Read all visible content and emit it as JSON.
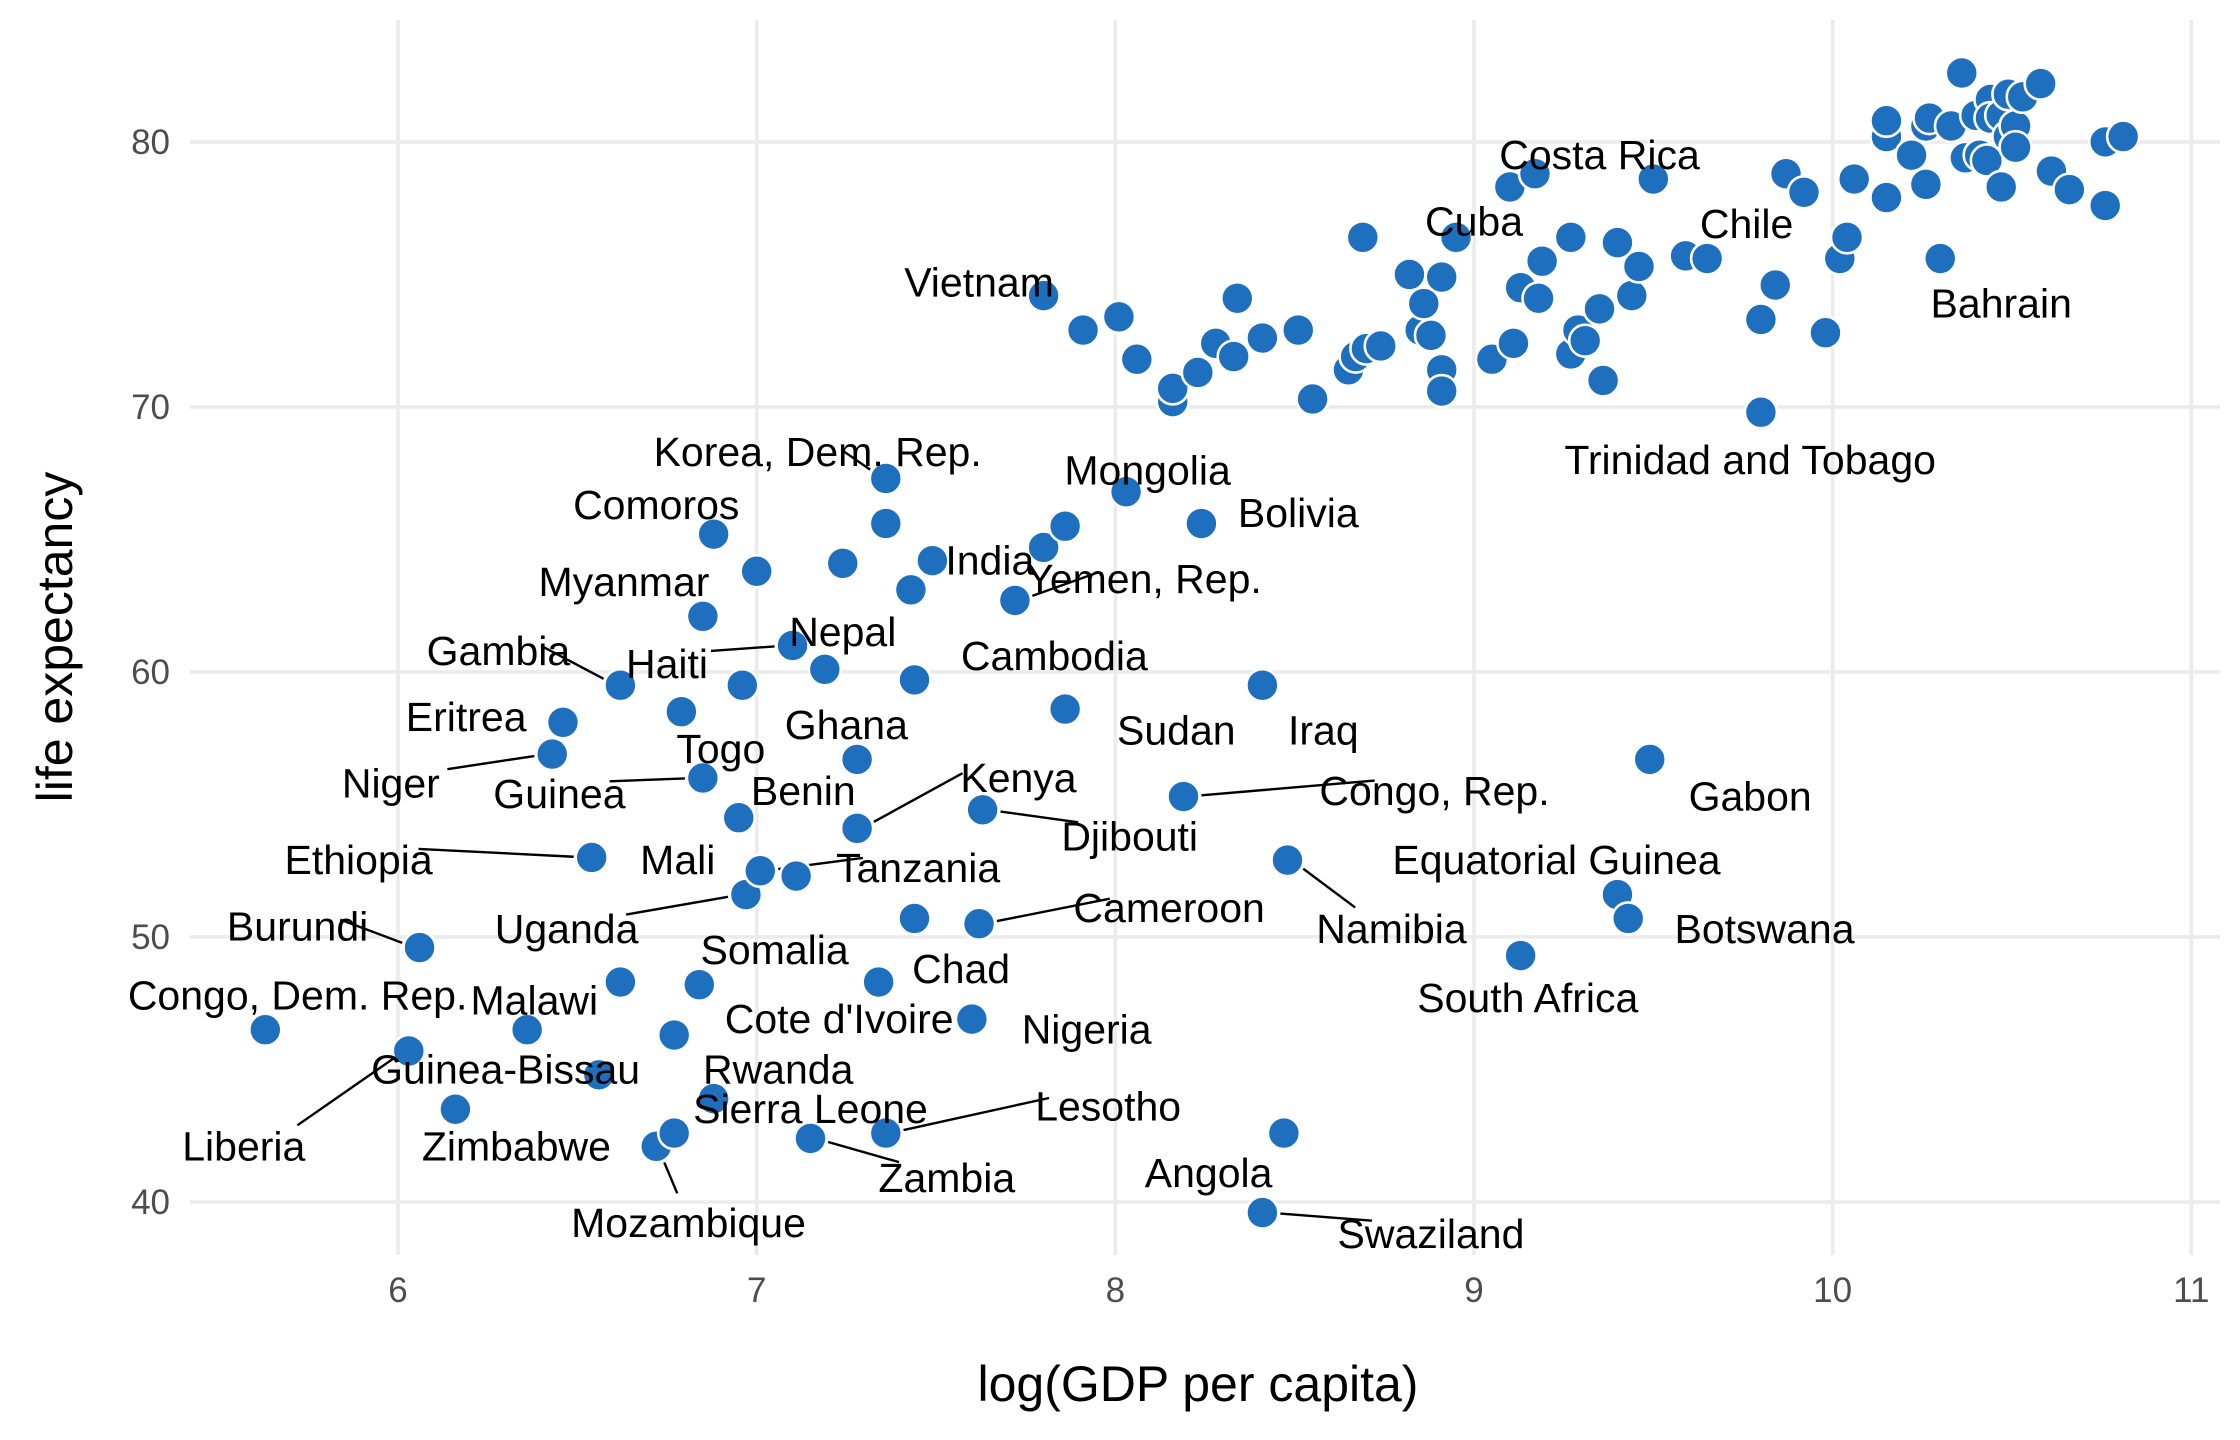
{
  "chart_data": {
    "type": "scatter",
    "xlabel": "log(GDP per capita)",
    "ylabel": "life expectancy",
    "xlim": [
      5.42,
      11.08
    ],
    "ylim": [
      38.0,
      84.6
    ],
    "x_ticks": [
      6,
      7,
      8,
      9,
      10,
      11
    ],
    "y_ticks": [
      40,
      50,
      60,
      70,
      80
    ],
    "grid": true,
    "point_color": "#1f6fbf",
    "points": [
      [
        5.63,
        46.5
      ],
      [
        6.03,
        45.7
      ],
      [
        6.06,
        49.6
      ],
      [
        6.16,
        43.5
      ],
      [
        6.36,
        46.5
      ],
      [
        6.43,
        56.9
      ],
      [
        6.46,
        58.1
      ],
      [
        6.54,
        53.0
      ],
      [
        6.56,
        44.8
      ],
      [
        6.62,
        48.3
      ],
      [
        6.62,
        59.5
      ],
      [
        6.72,
        42.1
      ],
      [
        6.77,
        42.6
      ],
      [
        6.77,
        46.3
      ],
      [
        6.79,
        58.5
      ],
      [
        6.84,
        48.2
      ],
      [
        6.85,
        56.0
      ],
      [
        6.85,
        62.1
      ],
      [
        6.88,
        65.2
      ],
      [
        6.88,
        43.9
      ],
      [
        6.95,
        54.5
      ],
      [
        6.96,
        59.5
      ],
      [
        6.97,
        51.6
      ],
      [
        7.0,
        63.8
      ],
      [
        7.01,
        52.5
      ],
      [
        7.1,
        61.0
      ],
      [
        7.11,
        52.3
      ],
      [
        7.15,
        42.4
      ],
      [
        7.19,
        60.1
      ],
      [
        7.24,
        64.1
      ],
      [
        7.28,
        56.7
      ],
      [
        7.28,
        54.1
      ],
      [
        7.34,
        48.3
      ],
      [
        7.36,
        67.3
      ],
      [
        7.36,
        65.6
      ],
      [
        7.36,
        42.6
      ],
      [
        7.43,
        63.1
      ],
      [
        7.44,
        59.7
      ],
      [
        7.44,
        50.7
      ],
      [
        7.49,
        64.2
      ],
      [
        7.6,
        46.9
      ],
      [
        7.62,
        50.5
      ],
      [
        7.63,
        54.8
      ],
      [
        7.72,
        62.7
      ],
      [
        7.8,
        74.2
      ],
      [
        7.8,
        64.7
      ],
      [
        7.86,
        65.5
      ],
      [
        7.86,
        58.6
      ],
      [
        7.91,
        72.9
      ],
      [
        8.01,
        73.4
      ],
      [
        8.03,
        66.8
      ],
      [
        8.06,
        71.8
      ],
      [
        8.16,
        70.2
      ],
      [
        8.16,
        70.7
      ],
      [
        8.19,
        55.3
      ],
      [
        8.23,
        71.3
      ],
      [
        8.24,
        65.6
      ],
      [
        8.28,
        72.4
      ],
      [
        8.33,
        71.9
      ],
      [
        8.34,
        74.1
      ],
      [
        8.41,
        72.6
      ],
      [
        8.41,
        59.5
      ],
      [
        8.41,
        39.6
      ],
      [
        8.47,
        42.6
      ],
      [
        8.48,
        52.9
      ],
      [
        8.51,
        72.9
      ],
      [
        8.55,
        70.3
      ],
      [
        8.65,
        71.4
      ],
      [
        8.67,
        71.9
      ],
      [
        8.69,
        76.4
      ],
      [
        8.7,
        72.2
      ],
      [
        8.74,
        72.3
      ],
      [
        8.82,
        75.0
      ],
      [
        8.85,
        72.9
      ],
      [
        8.86,
        73.9
      ],
      [
        8.88,
        72.7
      ],
      [
        8.91,
        71.4
      ],
      [
        8.91,
        70.6
      ],
      [
        8.91,
        74.9
      ],
      [
        8.95,
        76.4
      ],
      [
        9.05,
        71.8
      ],
      [
        9.1,
        78.3
      ],
      [
        9.11,
        72.4
      ],
      [
        9.13,
        74.5
      ],
      [
        9.13,
        49.3
      ],
      [
        9.17,
        78.8
      ],
      [
        9.18,
        74.1
      ],
      [
        9.19,
        75.5
      ],
      [
        9.27,
        72.0
      ],
      [
        9.27,
        76.4
      ],
      [
        9.29,
        72.9
      ],
      [
        9.31,
        72.5
      ],
      [
        9.35,
        73.7
      ],
      [
        9.36,
        71.0
      ],
      [
        9.4,
        76.2
      ],
      [
        9.4,
        51.6
      ],
      [
        9.43,
        50.7
      ],
      [
        9.44,
        74.2
      ],
      [
        9.46,
        75.3
      ],
      [
        9.49,
        56.7
      ],
      [
        9.5,
        78.6
      ],
      [
        9.59,
        75.7
      ],
      [
        9.65,
        75.6
      ],
      [
        9.8,
        73.3
      ],
      [
        9.8,
        69.8
      ],
      [
        9.84,
        74.6
      ],
      [
        9.87,
        78.8
      ],
      [
        9.92,
        78.1
      ],
      [
        9.98,
        72.8
      ],
      [
        10.02,
        75.6
      ],
      [
        10.04,
        76.4
      ],
      [
        10.06,
        78.6
      ],
      [
        10.15,
        80.2
      ],
      [
        10.15,
        80.8
      ],
      [
        10.15,
        77.9
      ],
      [
        10.22,
        79.5
      ],
      [
        10.26,
        80.6
      ],
      [
        10.26,
        78.4
      ],
      [
        10.27,
        80.9
      ],
      [
        10.3,
        75.6
      ],
      [
        10.33,
        80.6
      ],
      [
        10.36,
        82.6
      ],
      [
        10.37,
        79.4
      ],
      [
        10.4,
        81.0
      ],
      [
        10.41,
        79.5
      ],
      [
        10.43,
        79.3
      ],
      [
        10.44,
        81.6
      ],
      [
        10.44,
        80.9
      ],
      [
        10.47,
        81.0
      ],
      [
        10.47,
        78.3
      ],
      [
        10.49,
        80.2
      ],
      [
        10.49,
        81.8
      ],
      [
        10.51,
        80.6
      ],
      [
        10.51,
        79.8
      ],
      [
        10.53,
        81.7
      ],
      [
        10.58,
        82.2
      ],
      [
        10.61,
        78.9
      ],
      [
        10.66,
        78.2
      ],
      [
        10.76,
        80.0
      ],
      [
        10.76,
        77.6
      ],
      [
        10.81,
        80.2
      ]
    ],
    "labels": [
      {
        "text": "Costa Rica",
        "x": 9.17,
        "y": 78.8,
        "ax": 9.35,
        "ay": 79.5,
        "anchor": "middle",
        "leader": false
      },
      {
        "text": "Cuba",
        "x": 8.95,
        "y": 76.4,
        "ax": 9.0,
        "ay": 77.0,
        "anchor": "middle",
        "leader": false
      },
      {
        "text": "Chile",
        "x": 9.59,
        "y": 75.7,
        "ax": 9.76,
        "ay": 76.9,
        "anchor": "middle",
        "leader": false
      },
      {
        "text": "Vietnam",
        "x": 7.8,
        "y": 74.2,
        "ax": 7.62,
        "ay": 74.7,
        "anchor": "middle",
        "leader": false
      },
      {
        "text": "Bahrain",
        "x": 10.3,
        "y": 75.6,
        "ax": 10.47,
        "ay": 73.9,
        "anchor": "middle",
        "leader": false
      },
      {
        "text": "Trinidad and Tobago",
        "x": 9.8,
        "y": 69.8,
        "ax": 9.77,
        "ay": 68.0,
        "anchor": "middle",
        "leader": false
      },
      {
        "text": "Korea, Dem. Rep.",
        "x": 7.36,
        "y": 67.3,
        "ax": 7.17,
        "ay": 68.3,
        "anchor": "middle",
        "leader": true
      },
      {
        "text": "Mongolia",
        "x": 8.03,
        "y": 66.8,
        "ax": 8.09,
        "ay": 67.6,
        "anchor": "middle",
        "leader": false
      },
      {
        "text": "Bolivia",
        "x": 8.24,
        "y": 65.6,
        "ax": 8.51,
        "ay": 66.0,
        "anchor": "middle",
        "leader": false
      },
      {
        "text": "Comoros",
        "x": 6.88,
        "y": 65.2,
        "ax": 6.72,
        "ay": 66.3,
        "anchor": "middle",
        "leader": false
      },
      {
        "text": "India",
        "x": 7.49,
        "y": 64.2,
        "ax": 7.65,
        "ay": 64.2,
        "anchor": "middle",
        "leader": false
      },
      {
        "text": "Myanmar",
        "x": 7.0,
        "y": 63.8,
        "ax": 6.63,
        "ay": 63.4,
        "anchor": "middle",
        "leader": false
      },
      {
        "text": "Yemen, Rep.",
        "x": 7.72,
        "y": 62.7,
        "ax": 8.08,
        "ay": 63.5,
        "anchor": "middle",
        "leader": true
      },
      {
        "text": "Nepal",
        "x": 7.1,
        "y": 61.0,
        "ax": 7.24,
        "ay": 61.5,
        "anchor": "middle",
        "leader": false
      },
      {
        "text": "Gambia",
        "x": 6.62,
        "y": 59.5,
        "ax": 6.28,
        "ay": 60.8,
        "anchor": "middle",
        "leader": true
      },
      {
        "text": "Haiti",
        "x": 7.1,
        "y": 61.0,
        "ax": 6.75,
        "ay": 60.3,
        "anchor": "middle",
        "leader": true
      },
      {
        "text": "Cambodia",
        "x": 7.44,
        "y": 59.7,
        "ax": 7.83,
        "ay": 60.6,
        "anchor": "middle",
        "leader": false
      },
      {
        "text": "Eritrea",
        "x": 6.46,
        "y": 58.1,
        "ax": 6.19,
        "ay": 58.3,
        "anchor": "middle",
        "leader": false
      },
      {
        "text": "Ghana",
        "x": 7.28,
        "y": 56.7,
        "ax": 7.25,
        "ay": 58.0,
        "anchor": "middle",
        "leader": false
      },
      {
        "text": "Sudan",
        "x": 7.86,
        "y": 58.6,
        "ax": 8.17,
        "ay": 57.8,
        "anchor": "middle",
        "leader": false
      },
      {
        "text": "Iraq",
        "x": 8.41,
        "y": 59.5,
        "ax": 8.58,
        "ay": 57.8,
        "anchor": "middle",
        "leader": false
      },
      {
        "text": "Togo",
        "x": 6.85,
        "y": 56.0,
        "ax": 6.9,
        "ay": 57.1,
        "anchor": "middle",
        "leader": false
      },
      {
        "text": "Niger",
        "x": 6.43,
        "y": 56.9,
        "ax": 5.98,
        "ay": 55.8,
        "anchor": "middle",
        "leader": true
      },
      {
        "text": "Guinea",
        "x": 6.85,
        "y": 56.0,
        "ax": 6.45,
        "ay": 55.4,
        "anchor": "middle",
        "leader": true
      },
      {
        "text": "Benin",
        "x": 6.95,
        "y": 54.5,
        "ax": 7.13,
        "ay": 55.5,
        "anchor": "middle",
        "leader": false
      },
      {
        "text": "Kenya",
        "x": 7.28,
        "y": 54.1,
        "ax": 7.73,
        "ay": 56.0,
        "anchor": "middle",
        "leader": true
      },
      {
        "text": "Congo, Rep.",
        "x": 8.19,
        "y": 55.3,
        "ax": 8.89,
        "ay": 55.5,
        "anchor": "middle",
        "leader": true
      },
      {
        "text": "Gabon",
        "x": 9.49,
        "y": 56.7,
        "ax": 9.77,
        "ay": 55.3,
        "anchor": "middle",
        "leader": false
      },
      {
        "text": "Djibouti",
        "x": 7.63,
        "y": 54.8,
        "ax": 8.04,
        "ay": 53.8,
        "anchor": "middle",
        "leader": true
      },
      {
        "text": "Ethiopia",
        "x": 6.54,
        "y": 53.0,
        "ax": 5.89,
        "ay": 52.9,
        "anchor": "middle",
        "leader": true
      },
      {
        "text": "Mali",
        "x": 7.01,
        "y": 52.5,
        "ax": 6.78,
        "ay": 52.9,
        "anchor": "middle",
        "leader": false
      },
      {
        "text": "Tanzania",
        "x": 7.01,
        "y": 52.5,
        "ax": 7.45,
        "ay": 52.6,
        "anchor": "middle",
        "leader": true
      },
      {
        "text": "Equatorial Guinea",
        "x": 9.4,
        "y": 51.6,
        "ax": 9.23,
        "ay": 52.9,
        "anchor": "middle",
        "leader": false
      },
      {
        "text": "Cameroon",
        "x": 7.62,
        "y": 50.5,
        "ax": 8.15,
        "ay": 51.1,
        "anchor": "middle",
        "leader": true
      },
      {
        "text": "Uganda",
        "x": 6.97,
        "y": 51.6,
        "ax": 6.47,
        "ay": 50.3,
        "anchor": "middle",
        "leader": true
      },
      {
        "text": "Namibia",
        "x": 8.48,
        "y": 52.9,
        "ax": 8.77,
        "ay": 50.3,
        "anchor": "middle",
        "leader": true
      },
      {
        "text": "Botswana",
        "x": 9.43,
        "y": 50.7,
        "ax": 9.81,
        "ay": 50.3,
        "anchor": "middle",
        "leader": false
      },
      {
        "text": "Burundi",
        "x": 6.06,
        "y": 49.6,
        "ax": 5.72,
        "ay": 50.4,
        "anchor": "middle",
        "leader": true
      },
      {
        "text": "Somalia",
        "x": 6.84,
        "y": 48.2,
        "ax": 7.05,
        "ay": 49.5,
        "anchor": "middle",
        "leader": false
      },
      {
        "text": "Chad",
        "x": 7.34,
        "y": 48.3,
        "ax": 7.57,
        "ay": 48.8,
        "anchor": "middle",
        "leader": false
      },
      {
        "text": "South Africa",
        "x": 9.13,
        "y": 49.3,
        "ax": 9.15,
        "ay": 47.7,
        "anchor": "middle",
        "leader": false
      },
      {
        "text": "Congo, Dem. Rep.",
        "x": 5.63,
        "y": 46.5,
        "ax": 5.72,
        "ay": 47.8,
        "anchor": "middle",
        "leader": false
      },
      {
        "text": "Malawi",
        "x": 6.36,
        "y": 46.5,
        "ax": 6.38,
        "ay": 47.6,
        "anchor": "middle",
        "leader": false
      },
      {
        "text": "Cote d'Ivoire",
        "x": 6.77,
        "y": 46.3,
        "ax": 7.23,
        "ay": 46.9,
        "anchor": "middle",
        "leader": false
      },
      {
        "text": "Nigeria",
        "x": 7.6,
        "y": 46.9,
        "ax": 7.92,
        "ay": 46.5,
        "anchor": "middle",
        "leader": false
      },
      {
        "text": "Guinea-Bissau",
        "x": 6.56,
        "y": 44.8,
        "ax": 6.3,
        "ay": 45.0,
        "anchor": "middle",
        "leader": false
      },
      {
        "text": "Rwanda",
        "x": 6.88,
        "y": 43.9,
        "ax": 7.06,
        "ay": 45.0,
        "anchor": "middle",
        "leader": false
      },
      {
        "text": "Sierra Leone",
        "x": 6.88,
        "y": 43.9,
        "ax": 7.15,
        "ay": 43.5,
        "anchor": "middle",
        "leader": false
      },
      {
        "text": "Lesotho",
        "x": 7.36,
        "y": 42.6,
        "ax": 7.98,
        "ay": 43.6,
        "anchor": "middle",
        "leader": true
      },
      {
        "text": "Liberia",
        "x": 6.03,
        "y": 45.7,
        "ax": 5.57,
        "ay": 42.1,
        "anchor": "middle",
        "leader": true
      },
      {
        "text": "Zimbabwe",
        "x": 6.16,
        "y": 43.5,
        "ax": 6.33,
        "ay": 42.1,
        "anchor": "middle",
        "leader": false
      },
      {
        "text": "Angola",
        "x": 8.47,
        "y": 42.6,
        "ax": 8.26,
        "ay": 41.1,
        "anchor": "middle",
        "leader": false
      },
      {
        "text": "Zambia",
        "x": 7.15,
        "y": 42.4,
        "ax": 7.53,
        "ay": 40.9,
        "anchor": "middle",
        "leader": true
      },
      {
        "text": "Mozambique",
        "x": 6.72,
        "y": 42.1,
        "ax": 6.81,
        "ay": 39.2,
        "anchor": "middle",
        "leader": true
      },
      {
        "text": "Swaziland",
        "x": 8.41,
        "y": 39.6,
        "ax": 8.88,
        "ay": 38.8,
        "anchor": "middle",
        "leader": true
      }
    ]
  }
}
